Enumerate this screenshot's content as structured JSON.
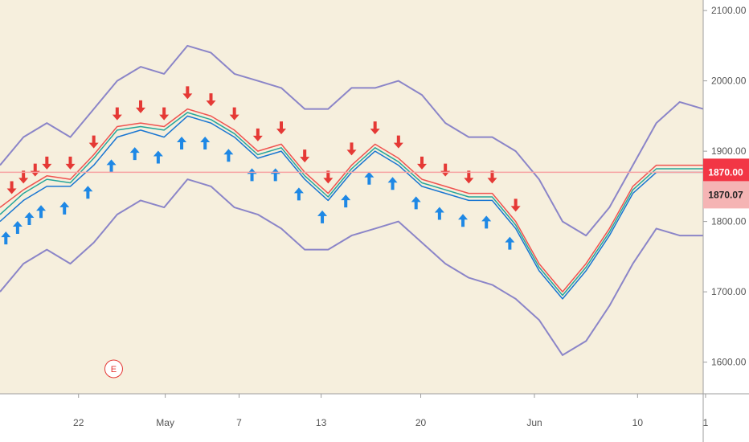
{
  "chart_data": {
    "type": "line",
    "y_axis": {
      "min": 1555,
      "max": 2115,
      "ticks": [
        {
          "value": 1600,
          "label": "1600.00"
        },
        {
          "value": 1700,
          "label": "1700.00"
        },
        {
          "value": 1800,
          "label": "1800.00"
        },
        {
          "value": 1900,
          "label": "1900.00"
        },
        {
          "value": 2000,
          "label": "2000.00"
        },
        {
          "value": 2100,
          "label": "2100.00"
        }
      ]
    },
    "x_axis": {
      "start_index": 0,
      "end_index": 60,
      "ticks": [
        {
          "index": 6.7,
          "label": "22"
        },
        {
          "index": 14.1,
          "label": "May"
        },
        {
          "index": 20.4,
          "label": "7"
        },
        {
          "index": 27.4,
          "label": "13"
        },
        {
          "index": 35.9,
          "label": "20"
        },
        {
          "index": 45.6,
          "label": "Jun"
        },
        {
          "index": 54.4,
          "label": "10"
        },
        {
          "index": 60.2,
          "label": "1"
        }
      ]
    },
    "price_lines": [
      {
        "value": 1870.0,
        "label": "1870.00",
        "color": "#f23645",
        "text_color": "#ffffff"
      },
      {
        "value": 1838,
        "label": "1870.07",
        "color": "#f5b4b4",
        "text_color": "#222222"
      }
    ],
    "horizontal_line": {
      "value": 1870,
      "color": "#f7a2a2"
    },
    "event_marker": {
      "index": 9.7,
      "label": "E",
      "color": "#e53935"
    },
    "series": [
      {
        "role": "upper-band",
        "color": "#8b85c8",
        "x": [
          0,
          2,
          4,
          6,
          8,
          10,
          12,
          14,
          16,
          18,
          20,
          22,
          24,
          26,
          28,
          30,
          32,
          34,
          36,
          38,
          40,
          42,
          44,
          46,
          48,
          50,
          52,
          54,
          56,
          58,
          60
        ],
        "y": [
          1880,
          1920,
          1940,
          1920,
          1960,
          2000,
          2020,
          2010,
          2050,
          2040,
          2010,
          2000,
          1990,
          1960,
          1960,
          1990,
          1990,
          2000,
          1980,
          1940,
          1920,
          1920,
          1900,
          1860,
          1800,
          1780,
          1820,
          1880,
          1940,
          1970,
          1960
        ]
      },
      {
        "role": "lower-band",
        "color": "#8b85c8",
        "x": [
          0,
          2,
          4,
          6,
          8,
          10,
          12,
          14,
          16,
          18,
          20,
          22,
          24,
          26,
          28,
          30,
          32,
          34,
          36,
          38,
          40,
          42,
          44,
          46,
          48,
          50,
          52,
          54,
          56,
          58,
          60
        ],
        "y": [
          1700,
          1740,
          1760,
          1740,
          1770,
          1810,
          1830,
          1820,
          1860,
          1850,
          1820,
          1810,
          1790,
          1760,
          1760,
          1780,
          1790,
          1800,
          1770,
          1740,
          1720,
          1710,
          1690,
          1660,
          1610,
          1630,
          1680,
          1740,
          1790,
          1780,
          1780
        ]
      },
      {
        "role": "price-line-1",
        "color": "#1976d2",
        "x": [
          0,
          2,
          4,
          6,
          8,
          10,
          12,
          14,
          16,
          18,
          20,
          22,
          24,
          26,
          28,
          30,
          32,
          34,
          36,
          38,
          40,
          42,
          44,
          46,
          48,
          50,
          52,
          54,
          56,
          58,
          60
        ],
        "y": [
          1800,
          1830,
          1850,
          1850,
          1880,
          1920,
          1930,
          1920,
          1950,
          1940,
          1920,
          1890,
          1900,
          1860,
          1830,
          1870,
          1900,
          1880,
          1850,
          1840,
          1830,
          1830,
          1790,
          1730,
          1690,
          1730,
          1780,
          1840,
          1870,
          1870,
          1870
        ]
      },
      {
        "role": "price-line-2",
        "color": "#26a69a",
        "x": [
          0,
          2,
          4,
          6,
          8,
          10,
          12,
          14,
          16,
          18,
          20,
          22,
          24,
          26,
          28,
          30,
          32,
          34,
          36,
          38,
          40,
          42,
          44,
          46,
          48,
          50,
          52,
          54,
          56,
          58,
          60
        ],
        "y": [
          1810,
          1840,
          1860,
          1855,
          1890,
          1930,
          1935,
          1930,
          1955,
          1945,
          1925,
          1895,
          1905,
          1865,
          1835,
          1875,
          1905,
          1885,
          1855,
          1845,
          1835,
          1835,
          1795,
          1735,
          1695,
          1735,
          1785,
          1845,
          1875,
          1875,
          1875
        ]
      },
      {
        "role": "price-line-3",
        "color": "#ef5350",
        "x": [
          0,
          2,
          4,
          6,
          8,
          10,
          12,
          14,
          16,
          18,
          20,
          22,
          24,
          26,
          28,
          30,
          32,
          34,
          36,
          38,
          40,
          42,
          44,
          46,
          48,
          50,
          52,
          54,
          56,
          58,
          60
        ],
        "y": [
          1820,
          1845,
          1865,
          1860,
          1895,
          1935,
          1940,
          1935,
          1960,
          1950,
          1930,
          1900,
          1910,
          1870,
          1840,
          1880,
          1910,
          1890,
          1860,
          1850,
          1840,
          1840,
          1800,
          1740,
          1700,
          1740,
          1790,
          1850,
          1880,
          1880,
          1880
        ]
      }
    ],
    "buy_signals": [
      0.5,
      1.5,
      2.5,
      3.5,
      5.5,
      7.5,
      9.5,
      11.5,
      13.5,
      15.5,
      17.5,
      19.5,
      21.5,
      23.5,
      25.5,
      27.5,
      29.5,
      31.5,
      33.5,
      35.5,
      37.5,
      39.5,
      41.5,
      43.5
    ],
    "sell_signals": [
      1,
      2,
      3,
      4,
      6,
      8,
      10,
      12,
      14,
      16,
      18,
      20,
      22,
      24,
      26,
      28,
      30,
      32,
      34,
      36,
      38,
      40,
      42,
      44
    ]
  }
}
